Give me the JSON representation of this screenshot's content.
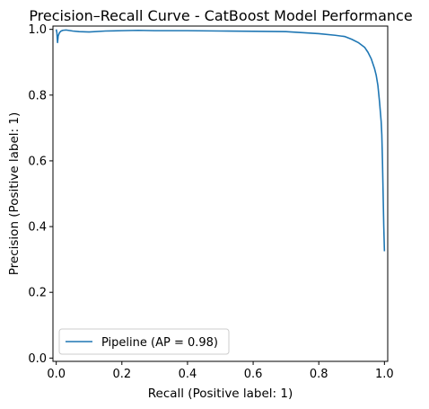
{
  "chart_data": {
    "type": "line",
    "title": "Precision–Recall Curve - CatBoost Model Performance",
    "xlabel": "Recall (Positive label: 1)",
    "ylabel": "Precision (Positive label: 1)",
    "xlim": [
      -0.01,
      1.01
    ],
    "ylim": [
      -0.01,
      1.01
    ],
    "xticks": [
      "0.0",
      "0.2",
      "0.4",
      "0.6",
      "0.8",
      "1.0"
    ],
    "yticks": [
      "0.0",
      "0.2",
      "0.4",
      "0.6",
      "0.8",
      "1.0"
    ],
    "grid": false,
    "legend_position": "lower left",
    "series": [
      {
        "name": "Pipeline (AP = 0.98)",
        "color": "#1f77b4",
        "x": [
          0.0,
          0.002,
          0.004,
          0.006,
          0.008,
          0.01,
          0.015,
          0.02,
          0.03,
          0.05,
          0.07,
          0.1,
          0.15,
          0.2,
          0.25,
          0.3,
          0.4,
          0.5,
          0.6,
          0.7,
          0.75,
          0.8,
          0.85,
          0.88,
          0.9,
          0.92,
          0.94,
          0.95,
          0.96,
          0.97,
          0.975,
          0.98,
          0.985,
          0.99,
          0.992,
          0.994,
          0.996,
          0.998,
          1.0
        ],
        "y": [
          1.0,
          0.99,
          0.96,
          0.98,
          0.985,
          0.99,
          0.995,
          0.997,
          0.998,
          0.995,
          0.993,
          0.992,
          0.995,
          0.996,
          0.997,
          0.996,
          0.996,
          0.995,
          0.994,
          0.993,
          0.99,
          0.987,
          0.982,
          0.978,
          0.97,
          0.96,
          0.945,
          0.93,
          0.91,
          0.88,
          0.86,
          0.83,
          0.78,
          0.72,
          0.68,
          0.6,
          0.5,
          0.4,
          0.325
        ]
      }
    ]
  }
}
